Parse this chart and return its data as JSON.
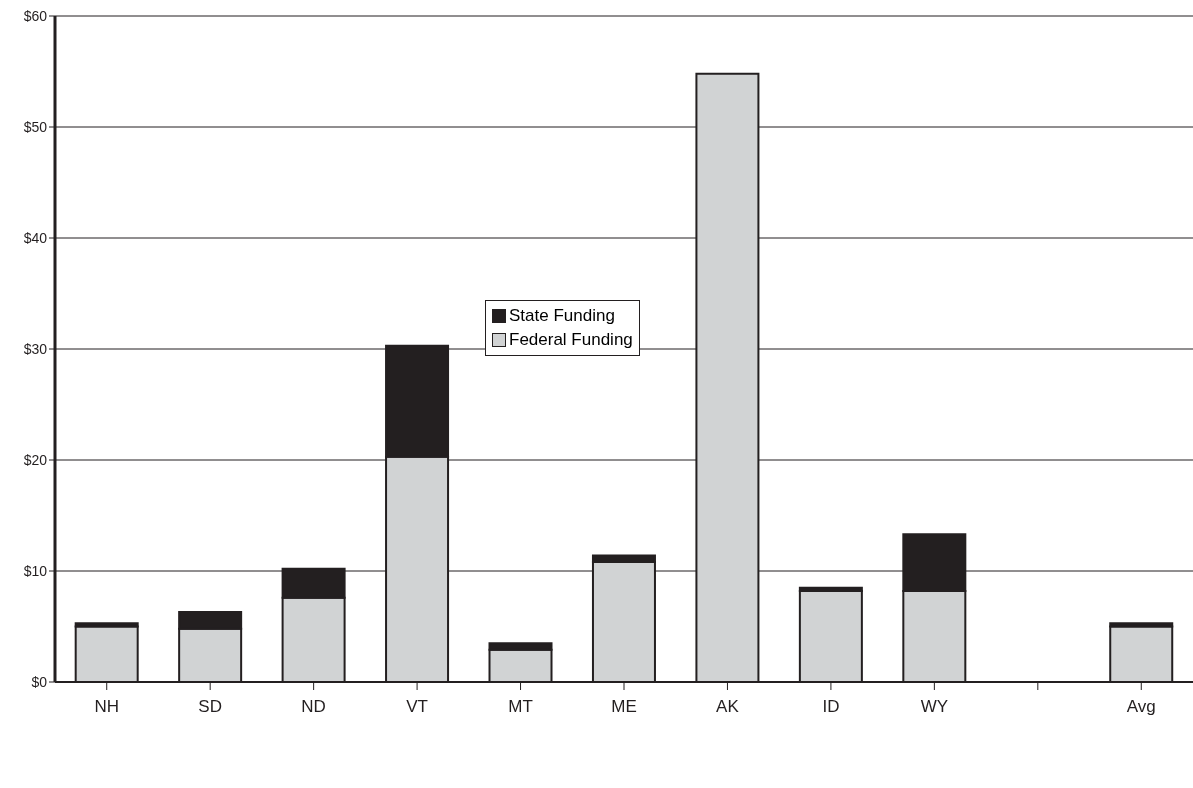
{
  "chart_data": {
    "type": "bar",
    "stacked": true,
    "categories": [
      "NH",
      "SD",
      "ND",
      "VT",
      "MT",
      "ME",
      "AK",
      "ID",
      "WY",
      null,
      "Avg"
    ],
    "series": [
      {
        "name": "Federal Funding",
        "color": "#d1d3d4",
        "values": [
          5.0,
          4.8,
          7.6,
          20.3,
          2.9,
          10.8,
          54.8,
          8.2,
          8.2,
          null,
          5.0
        ]
      },
      {
        "name": "State Funding",
        "color": "#231f20",
        "values": [
          0.3,
          1.5,
          2.6,
          10.0,
          0.6,
          0.6,
          0,
          0.3,
          5.1,
          null,
          0.3
        ]
      }
    ],
    "ylim": [
      0,
      60
    ],
    "yticks": [
      {
        "value": 0,
        "label": "$0"
      },
      {
        "value": 10,
        "label": "$10"
      },
      {
        "value": 20,
        "label": "$20"
      },
      {
        "value": 30,
        "label": "$30"
      },
      {
        "value": 40,
        "label": "$40"
      },
      {
        "value": 50,
        "label": "$50"
      },
      {
        "value": 60,
        "label": "$60"
      }
    ],
    "grid": "y",
    "legend": "top"
  }
}
